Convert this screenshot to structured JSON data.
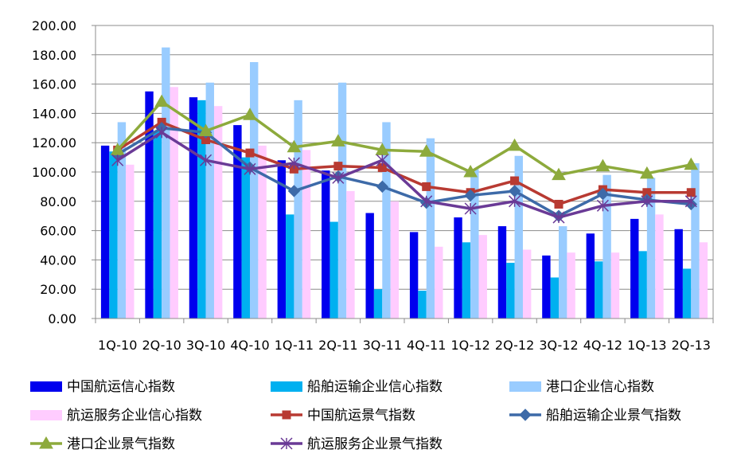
{
  "chart_data": {
    "type": "bar",
    "title": "",
    "xlabel": "",
    "ylabel": "",
    "ylim": [
      0,
      200
    ],
    "y_ticks": [
      "0.00",
      "20.00",
      "40.00",
      "60.00",
      "80.00",
      "100.00",
      "120.00",
      "140.00",
      "160.00",
      "180.00",
      "200.00"
    ],
    "categories": [
      "1Q-10",
      "2Q-10",
      "3Q-10",
      "4Q-10",
      "1Q-11",
      "2Q-11",
      "3Q-11",
      "4Q-11",
      "1Q-12",
      "2Q-12",
      "3Q-12",
      "4Q-12",
      "1Q-13",
      "2Q-13"
    ],
    "bar_series": [
      {
        "name": "中国航运信心指数",
        "color": "#0000EE",
        "values": [
          118,
          155,
          151,
          132,
          108,
          101,
          72,
          59,
          69,
          63,
          43,
          58,
          68,
          61
        ]
      },
      {
        "name": "船舶运输企业信心指数",
        "color": "#00B0F0",
        "values": [
          114,
          128,
          149,
          110,
          71,
          66,
          20,
          19,
          52,
          38,
          28,
          39,
          46,
          34
        ]
      },
      {
        "name": "港口企业信心指数",
        "color": "#99CCFF",
        "values": [
          134,
          185,
          161,
          175,
          149,
          161,
          134,
          123,
          102,
          111,
          63,
          98,
          96,
          106
        ]
      },
      {
        "name": "航运服务企业信心指数",
        "color": "#FFCCFF",
        "values": [
          105,
          158,
          145,
          118,
          115,
          87,
          80,
          49,
          57,
          47,
          45,
          45,
          71,
          52
        ]
      }
    ],
    "line_series": [
      {
        "name": "中国航运景气指数",
        "color": "#B83A32",
        "marker": "square",
        "values": [
          115,
          134,
          122,
          113,
          102,
          104,
          103,
          90,
          86,
          94,
          78,
          88,
          86,
          86
        ]
      },
      {
        "name": "船舶运输企业景气指数",
        "color": "#3D6AA8",
        "marker": "diamond",
        "values": [
          112,
          130,
          127,
          103,
          87,
          97,
          90,
          79,
          84,
          87,
          70,
          85,
          81,
          78
        ]
      },
      {
        "name": "港口企业景气指数",
        "color": "#8DAA3C",
        "marker": "triangle",
        "values": [
          115,
          148,
          128,
          139,
          117,
          121,
          115,
          114,
          100,
          118,
          98,
          104,
          99,
          105
        ]
      },
      {
        "name": "航运服务企业景气指数",
        "color": "#6A3A96",
        "marker": "star",
        "values": [
          108,
          127,
          108,
          102,
          106,
          96,
          108,
          80,
          75,
          80,
          69,
          77,
          80,
          80
        ]
      }
    ],
    "legend_position": "bottom",
    "legend_order": [
      "中国航运信心指数",
      "船舶运输企业信心指数",
      "港口企业信心指数",
      "航运服务企业信心指数",
      "中国航运景气指数",
      "船舶运输企业景气指数",
      "港口企业景气指数",
      "航运服务企业景气指数"
    ]
  }
}
